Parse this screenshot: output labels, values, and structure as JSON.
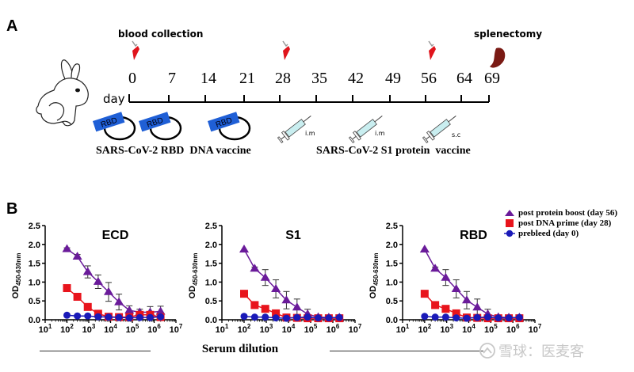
{
  "panelA": {
    "label": "A",
    "blood_collection_label": "blood collection",
    "splenectomy_label": "splenectomy",
    "day_label": "day",
    "days": [
      "0",
      "7",
      "14",
      "21",
      "28",
      "35",
      "42",
      "49",
      "56",
      "64",
      "69"
    ],
    "blood_collection_days": [
      "0",
      "28",
      "56"
    ],
    "plasmid_tag": "RBD",
    "plasmid_doses": 3,
    "dna_vaccine_label": "SARS-CoV-2 RBD  DNA vaccine",
    "injections": [
      {
        "route": "i.m"
      },
      {
        "route": "i.m"
      },
      {
        "route": "s.c"
      }
    ],
    "protein_vaccine_label": "SARS-CoV-2 S1 protein  vaccine",
    "colors": {
      "blood_tube": "#e0141c",
      "spleen": "#7a1a14",
      "plasmid_tag": "#1f5fd6",
      "syringe": "#c9eef0"
    }
  },
  "panelB": {
    "label": "B",
    "xlabel": "Serum dilution",
    "legend": [
      {
        "label": "post protein boost (day 56)",
        "marker": "triangle",
        "color": "#6a1b9a"
      },
      {
        "label": "post DNA prime (day 28)",
        "marker": "square",
        "color": "#e8141c"
      },
      {
        "label": "prebleed (day 0)",
        "marker": "circle",
        "color": "#1a1ab8"
      }
    ],
    "watermark": "雪球：医麦客"
  },
  "chart_data": [
    {
      "type": "line",
      "title": "ECD",
      "xlabel": "Serum dilution",
      "ylabel": "OD450-630nm",
      "xscale": "log",
      "xlim": [
        10,
        10000000
      ],
      "ylim": [
        0,
        2.5
      ],
      "yticks": [
        "0.0",
        "0.5",
        "1.0",
        "1.5",
        "2.0",
        "2.5"
      ],
      "xticks": [
        "10^1",
        "10^2",
        "10^3",
        "10^4",
        "10^5",
        "10^6",
        "10^7"
      ],
      "x": [
        100,
        300,
        900,
        2700,
        8100,
        24300,
        72900,
        218700,
        656100,
        1968300
      ],
      "series": [
        {
          "name": "post protein boost (day 56)",
          "values": [
            1.88,
            1.68,
            1.27,
            1.01,
            0.74,
            0.47,
            0.25,
            0.2,
            0.2,
            0.22
          ],
          "error": [
            0.03,
            0.05,
            0.16,
            0.18,
            0.25,
            0.21,
            0.12,
            0.08,
            0.15,
            0.14
          ]
        },
        {
          "name": "post DNA prime (day 28)",
          "values": [
            0.84,
            0.61,
            0.34,
            0.16,
            0.08,
            0.07,
            0.07,
            0.13,
            0.13,
            0.07
          ],
          "error": [
            0,
            0,
            0,
            0,
            0,
            0,
            0,
            0,
            0,
            0
          ]
        },
        {
          "name": "prebleed (day 0)",
          "values": [
            0.12,
            0.1,
            0.1,
            0.08,
            0.07,
            0.06,
            0.05,
            0.06,
            0.06,
            0.08
          ],
          "error": [
            0,
            0,
            0,
            0,
            0,
            0,
            0,
            0,
            0,
            0
          ]
        }
      ]
    },
    {
      "type": "line",
      "title": "S1",
      "xlabel": "Serum dilution",
      "ylabel": "OD450-630nm",
      "xscale": "log",
      "xlim": [
        10,
        10000000
      ],
      "ylim": [
        0,
        2.5
      ],
      "yticks": [
        "0.0",
        "0.5",
        "1.0",
        "1.5",
        "2.0",
        "2.5"
      ],
      "xticks": [
        "10^1",
        "10^2",
        "10^3",
        "10^4",
        "10^5",
        "10^6",
        "10^7"
      ],
      "x": [
        100,
        300,
        900,
        2700,
        8100,
        24300,
        72900,
        218700,
        656100,
        1968300
      ],
      "series": [
        {
          "name": "post protein boost (day 56)",
          "values": [
            1.87,
            1.36,
            1.12,
            0.82,
            0.52,
            0.33,
            0.15,
            0.07,
            0.06,
            0.06
          ],
          "error": [
            0.02,
            0.04,
            0.21,
            0.24,
            0.23,
            0.22,
            0.13,
            0.03,
            0.03,
            0.02
          ]
        },
        {
          "name": "post DNA prime (day 28)",
          "values": [
            0.69,
            0.39,
            0.29,
            0.17,
            0.06,
            0.05,
            0.04,
            0.04,
            0.04,
            0.04
          ],
          "error": [
            0,
            0,
            0,
            0,
            0,
            0,
            0,
            0,
            0,
            0
          ]
        },
        {
          "name": "prebleed (day 0)",
          "values": [
            0.09,
            0.07,
            0.07,
            0.05,
            0.04,
            0.06,
            0.07,
            0.05,
            0.05,
            0.06
          ],
          "error": [
            0,
            0,
            0,
            0,
            0,
            0,
            0,
            0,
            0,
            0
          ]
        }
      ]
    },
    {
      "type": "line",
      "title": "RBD",
      "xlabel": "Serum dilution",
      "ylabel": "OD450-630nm",
      "xscale": "log",
      "xlim": [
        10,
        10000000
      ],
      "ylim": [
        0,
        2.5
      ],
      "yticks": [
        "0.0",
        "0.5",
        "1.0",
        "1.5",
        "2.0",
        "2.5"
      ],
      "xticks": [
        "10^1",
        "10^2",
        "10^3",
        "10^4",
        "10^5",
        "10^6",
        "10^7"
      ],
      "x": [
        100,
        300,
        900,
        2700,
        8100,
        24300,
        72900,
        218700,
        656100,
        1968300
      ],
      "series": [
        {
          "name": "post protein boost (day 56)",
          "values": [
            1.87,
            1.36,
            1.12,
            0.82,
            0.52,
            0.33,
            0.15,
            0.07,
            0.06,
            0.06
          ],
          "error": [
            0.02,
            0.04,
            0.21,
            0.24,
            0.23,
            0.22,
            0.13,
            0.03,
            0.03,
            0.02
          ]
        },
        {
          "name": "post DNA prime (day 28)",
          "values": [
            0.69,
            0.39,
            0.29,
            0.17,
            0.06,
            0.05,
            0.04,
            0.04,
            0.04,
            0.04
          ],
          "error": [
            0,
            0,
            0,
            0,
            0,
            0,
            0,
            0,
            0,
            0
          ]
        },
        {
          "name": "prebleed (day 0)",
          "values": [
            0.09,
            0.07,
            0.07,
            0.05,
            0.04,
            0.06,
            0.07,
            0.05,
            0.05,
            0.06
          ],
          "error": [
            0,
            0,
            0,
            0,
            0,
            0,
            0,
            0,
            0,
            0
          ]
        }
      ]
    }
  ]
}
